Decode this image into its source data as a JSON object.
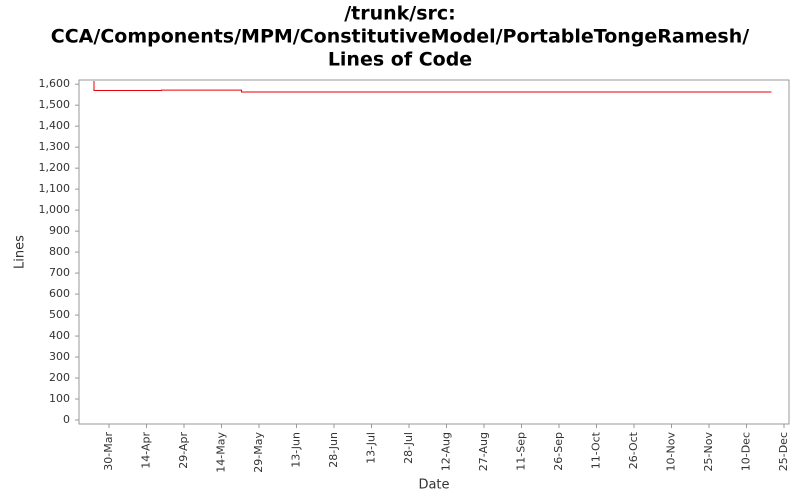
{
  "chart_data": {
    "type": "line",
    "title": "/trunk/src: CCA/Components/MPM/ConstitutiveModel/PortableTongeRamesh/ Lines of Code",
    "title_lines": [
      "/trunk/src:",
      "CCA/Components/MPM/ConstitutiveModel/PortableTongeRamesh/",
      "Lines of Code"
    ],
    "x_label": "Date",
    "y_label": "Lines",
    "step": true,
    "x": [
      "24-Mar",
      "24-Mar",
      "20-Apr",
      "22-May",
      "20-Dec"
    ],
    "series": [
      {
        "name": "Lines",
        "color": "#e8000b",
        "values": [
          1615,
          1570,
          1572,
          1563,
          1563
        ]
      }
    ],
    "xlim": [
      "18-Mar",
      "27-Dec"
    ],
    "xticks": [
      "30-Mar",
      "14-Apr",
      "29-Apr",
      "14-May",
      "29-May",
      "13-Jun",
      "28-Jun",
      "13-Jul",
      "28-Jul",
      "12-Aug",
      "27-Aug",
      "11-Sep",
      "26-Sep",
      "11-Oct",
      "26-Oct",
      "10-Nov",
      "25-Nov",
      "10-Dec",
      "25-Dec"
    ],
    "ylim": [
      -19,
      1620
    ],
    "yticks": [
      0,
      100,
      200,
      300,
      400,
      500,
      600,
      700,
      800,
      900,
      {
        "value": 1000,
        "label": "1,000"
      },
      {
        "value": 1100,
        "label": "1,100"
      },
      {
        "value": 1200,
        "label": "1,200"
      },
      {
        "value": 1300,
        "label": "1,300"
      },
      {
        "value": 1400,
        "label": "1,400"
      },
      {
        "value": 1500,
        "label": "1,500"
      },
      {
        "value": 1600,
        "label": "1,600"
      }
    ],
    "grid": false
  }
}
